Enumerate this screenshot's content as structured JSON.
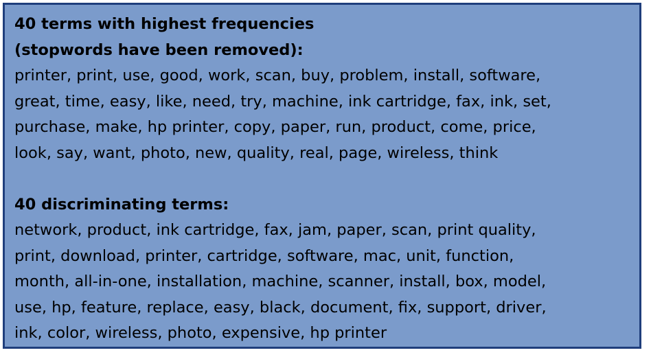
{
  "section1": {
    "heading_line1": "40 terms with highest frequencies",
    "heading_line2": "(stopwords have been removed):",
    "lines": [
      "printer, print, use, good, work, scan, buy, problem, install, software,",
      "great, time, easy, like, need, try, machine, ink cartridge, fax, ink, set,",
      "purchase, make, hp printer, copy, paper, run, product, come, price,",
      "look, say, want, photo, new, quality, real, page, wireless, think"
    ]
  },
  "section2": {
    "heading": "40 discriminating terms:",
    "lines": [
      "network, product, ink cartridge, fax, jam, paper, scan, print quality,",
      "print, download, printer, cartridge, software, mac, unit, function,",
      "month, all-in-one, installation, machine, scanner, install, box, model,",
      "use, hp, feature, replace, easy, black, document, fix, support, driver,",
      "ink, color, wireless, photo, expensive, hp printer"
    ]
  },
  "colors": {
    "panel_background": "#7b9bcb",
    "panel_border": "#1f3e7c",
    "text": "#000000"
  }
}
